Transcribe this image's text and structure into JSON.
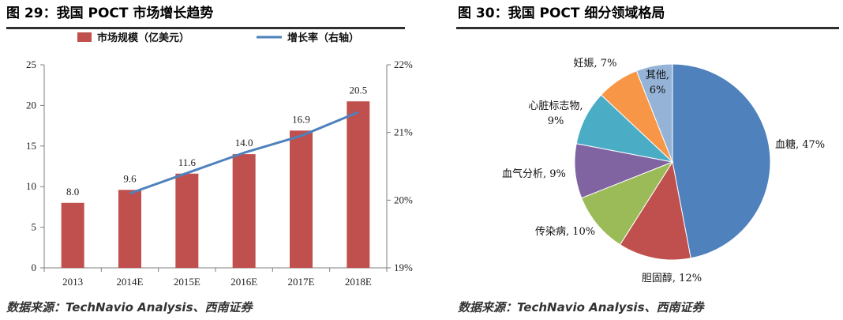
{
  "left": {
    "title": "图 29：我国 POCT 市场增长趋势",
    "source": "数据来源：TechNavio Analysis、西南证券"
  },
  "right": {
    "title": "图 30：我国 POCT 细分领域格局",
    "source": "数据来源：TechNavio Analysis、西南证券"
  },
  "chart_data": [
    {
      "type": "bar",
      "categories": [
        "2013",
        "2014E",
        "2015E",
        "2016E",
        "2017E",
        "2018E"
      ],
      "series": [
        {
          "name": "市场规模（亿美元）",
          "type": "bar",
          "axis": "left",
          "values": [
            8.0,
            9.6,
            11.6,
            14.0,
            16.9,
            20.5
          ],
          "data_labels": [
            "8.0",
            "9.6",
            "11.6",
            "14.0",
            "16.9",
            "20.5"
          ],
          "color": "#c0504d"
        },
        {
          "name": "增长率（右轴）",
          "type": "line",
          "axis": "right",
          "values": [
            null,
            20.1,
            20.4,
            20.7,
            20.95,
            21.3
          ],
          "color": "#4f81bd"
        }
      ],
      "y_left": {
        "ylim": [
          0,
          25
        ],
        "ticks": [
          "0",
          "5",
          "10",
          "15",
          "20",
          "25"
        ]
      },
      "y_right": {
        "ylim": [
          19,
          22
        ],
        "ticks": [
          "19%",
          "20%",
          "21%",
          "22%"
        ]
      },
      "legend_position": "top"
    },
    {
      "type": "pie",
      "slices": [
        {
          "label": "血糖",
          "value": 47,
          "text": "血糖, 47%",
          "color": "#4f81bd"
        },
        {
          "label": "胆固醇",
          "value": 12,
          "text": "胆固醇, 12%",
          "color": "#c0504d"
        },
        {
          "label": "传染病",
          "value": 10,
          "text": "传染病, 10%",
          "color": "#9bbb59"
        },
        {
          "label": "血气分析",
          "value": 9,
          "text": "血气分析, 9%",
          "color": "#8064a2"
        },
        {
          "label": "心脏标志物",
          "value": 9,
          "text": [
            "心脏标志物,",
            "9%"
          ],
          "color": "#4bacc6"
        },
        {
          "label": "妊娠",
          "value": 7,
          "text": "妊娠, 7%",
          "color": "#f79646"
        },
        {
          "label": "其他",
          "value": 6,
          "text": [
            "其他,",
            "6%"
          ],
          "color": "#95b3d7"
        }
      ]
    }
  ]
}
